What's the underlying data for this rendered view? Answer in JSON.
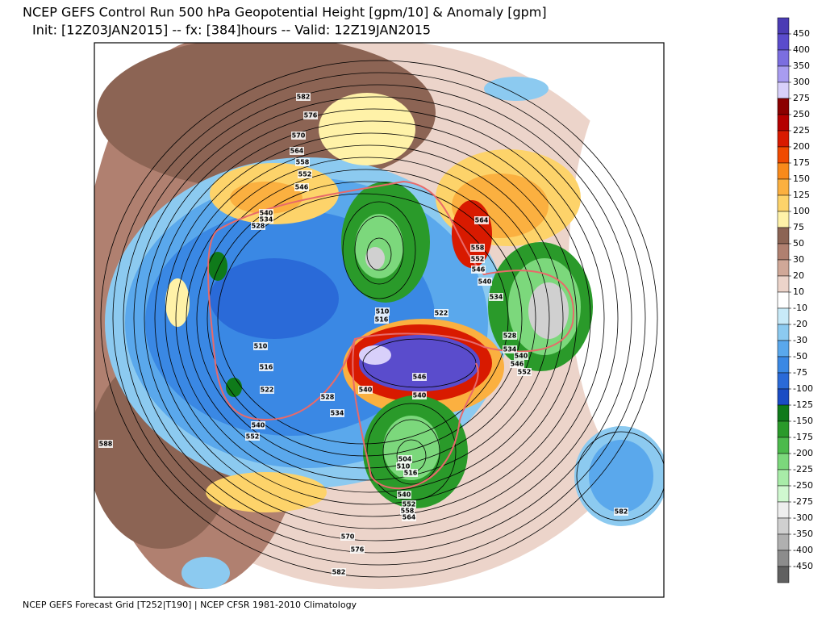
{
  "header": {
    "title": "NCEP GEFS Control Run 500 hPa Geopotential Height [gpm/10] & Anomaly [gpm]",
    "subtitle": "Init: [12Z03JAN2015] -- fx: [384]hours -- Valid: 12Z19JAN2015"
  },
  "footer": "NCEP GEFS Forecast Grid [T252|T190] | NCEP CFSR 1981-2010 Climatology",
  "colorbar": {
    "levels": [
      450,
      400,
      350,
      300,
      275,
      250,
      225,
      200,
      175,
      150,
      125,
      100,
      75,
      50,
      30,
      20,
      10,
      -10,
      -20,
      -30,
      -50,
      -75,
      -100,
      -125,
      -150,
      -175,
      -200,
      -225,
      -250,
      -275,
      -300,
      -350,
      -400,
      -450
    ],
    "colors": [
      "#4b3cb4",
      "#5a4ccc",
      "#7b6ee0",
      "#a89cf0",
      "#d8d0fa",
      "#8b0000",
      "#b40000",
      "#d81a00",
      "#f04a00",
      "#f98a1a",
      "#fbb040",
      "#fdd36a",
      "#fff2a8",
      "#8c6454",
      "#b08070",
      "#d0a898",
      "#ecd4ca",
      "#ffffff",
      "#c8eaf8",
      "#8ccaf0",
      "#5aa8ec",
      "#3a88e4",
      "#2a6ad8",
      "#1a4cc4",
      "#0f7a1a",
      "#2a9a2a",
      "#4cba4c",
      "#7cd87c",
      "#a8eca8",
      "#d0f8d0",
      "#eeeeee",
      "#d0d0d0",
      "#b0b0b0",
      "#8c8c8c",
      "#606060"
    ]
  },
  "map": {
    "contour_labels": [
      582,
      576,
      570,
      564,
      558,
      552,
      546,
      540,
      534,
      528,
      564,
      558,
      552,
      546,
      540,
      534,
      528,
      534,
      540,
      546,
      552,
      510,
      516,
      522,
      510,
      516,
      522,
      528,
      534,
      540,
      546,
      540,
      540,
      552,
      504,
      510,
      516,
      540,
      552,
      558,
      564,
      570,
      576,
      582,
      588,
      582
    ]
  }
}
